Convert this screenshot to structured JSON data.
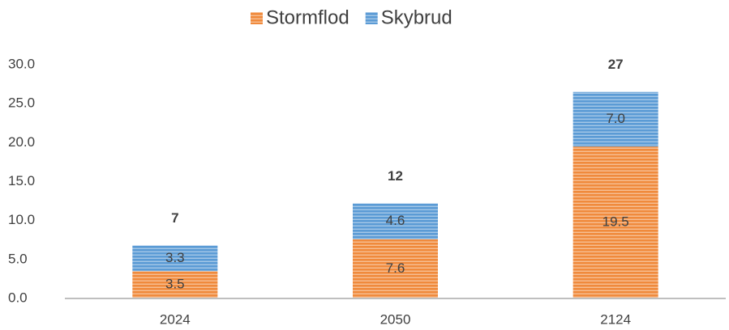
{
  "chart_data": {
    "type": "stacked_bar",
    "categories": [
      "2024",
      "2050",
      "2124"
    ],
    "series": [
      {
        "name": "Stormflod",
        "color": "#f08a3c",
        "values": [
          3.5,
          7.6,
          19.5
        ],
        "value_labels": [
          "3.5",
          "7.6",
          "19.5"
        ]
      },
      {
        "name": "Skybrud",
        "color": "#5b9bd5",
        "values": [
          3.3,
          4.6,
          7.0
        ],
        "value_labels": [
          "3.3",
          "4.6",
          "7.0"
        ]
      }
    ],
    "totals": {
      "values": [
        6.8,
        12.2,
        26.5
      ],
      "value_labels": [
        "7",
        "12",
        "27"
      ]
    },
    "ylim": [
      0,
      30
    ],
    "yticks": [
      {
        "value": 0,
        "label": "0.0"
      },
      {
        "value": 5,
        "label": "5.0"
      },
      {
        "value": 10,
        "label": "10.0"
      },
      {
        "value": 15,
        "label": "15.0"
      },
      {
        "value": 20,
        "label": "20.0"
      },
      {
        "value": 25,
        "label": "25.0"
      },
      {
        "value": 30,
        "label": "30.0"
      }
    ],
    "grid": false,
    "legend": "top"
  }
}
